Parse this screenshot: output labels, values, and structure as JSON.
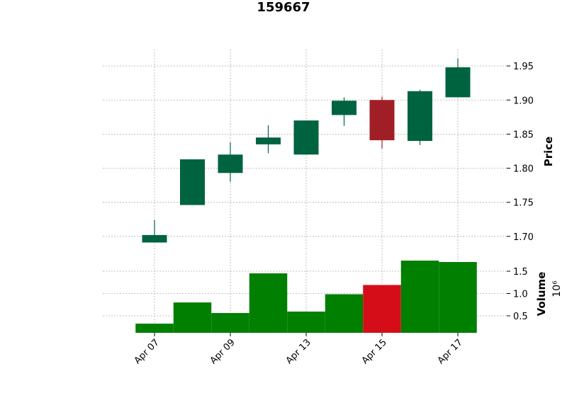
{
  "chart_data": {
    "type": "candlestick",
    "title": "159667",
    "categories": [
      "Apr 07",
      null,
      "Apr 09",
      null,
      "Apr 13",
      null,
      "Apr 15",
      null,
      "Apr 17"
    ],
    "open": [
      1.691,
      1.746,
      1.793,
      1.835,
      1.82,
      1.878,
      1.9,
      1.84,
      1.904
    ],
    "high": [
      1.724,
      1.813,
      1.838,
      1.863,
      1.87,
      1.904,
      1.905,
      1.915,
      1.961
    ],
    "low": [
      1.691,
      1.746,
      1.78,
      1.822,
      1.82,
      1.862,
      1.829,
      1.834,
      1.904
    ],
    "close": [
      1.702,
      1.813,
      1.82,
      1.845,
      1.87,
      1.899,
      1.841,
      1.913,
      1.948
    ],
    "up_color": "#006340",
    "down_color": "#a01f27",
    "ylabel": "Price",
    "ylim": [
      1.678,
      1.974
    ],
    "yticks": [
      {
        "value": 1.7,
        "label": "1.70"
      },
      1.75,
      {
        "value": 1.8,
        "label": "1.80"
      },
      1.85,
      {
        "value": 1.9,
        "label": "1.90"
      },
      1.95
    ],
    "grid": true,
    "volume": {
      "ylabel": "Volume",
      "offset_label": "10⁶",
      "values": [
        0.325,
        0.8,
        0.563,
        1.452,
        0.595,
        0.984,
        1.191,
        1.738,
        1.706
      ],
      "up_color": "#007f00",
      "down_color": "#d50d18",
      "ylim": [
        0.119,
        1.897
      ],
      "yticks": [
        0.5,
        {
          "value": 1.0,
          "label": "1.0"
        },
        1.5
      ]
    }
  }
}
